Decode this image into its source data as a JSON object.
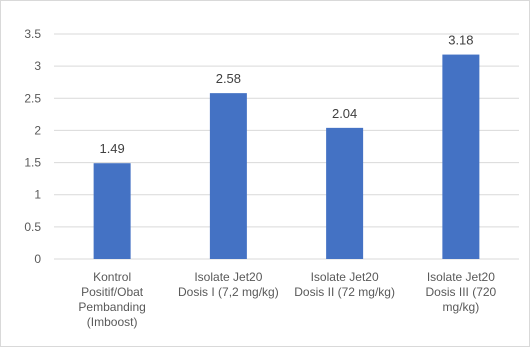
{
  "chart_data": {
    "type": "bar",
    "title": "",
    "xlabel": "",
    "ylabel": "",
    "ylim": [
      0,
      3.5
    ],
    "yticks": [
      0,
      0.5,
      1,
      1.5,
      2,
      2.5,
      3,
      3.5
    ],
    "ytick_labels": [
      "0",
      "0.5",
      "1",
      "1.5",
      "2",
      "2.5",
      "3",
      "3.5"
    ],
    "grid": true,
    "legend": "none",
    "bar_color": "#4472c4",
    "grid_color": "#d9d9d9",
    "categories": [
      [
        "Kontrol",
        "Positif/Obat",
        "Pembanding",
        "(Imboost)"
      ],
      [
        "Isolate Jet20",
        "Dosis I (7,2 mg/kg)"
      ],
      [
        "Isolate Jet20",
        "Dosis II (72 mg/kg)"
      ],
      [
        "Isolate Jet20",
        "Dosis III (720",
        "mg/kg)"
      ]
    ],
    "values": [
      1.49,
      2.58,
      2.04,
      3.18
    ],
    "data_labels": [
      "1.49",
      "2.58",
      "2.04",
      "3.18"
    ]
  }
}
